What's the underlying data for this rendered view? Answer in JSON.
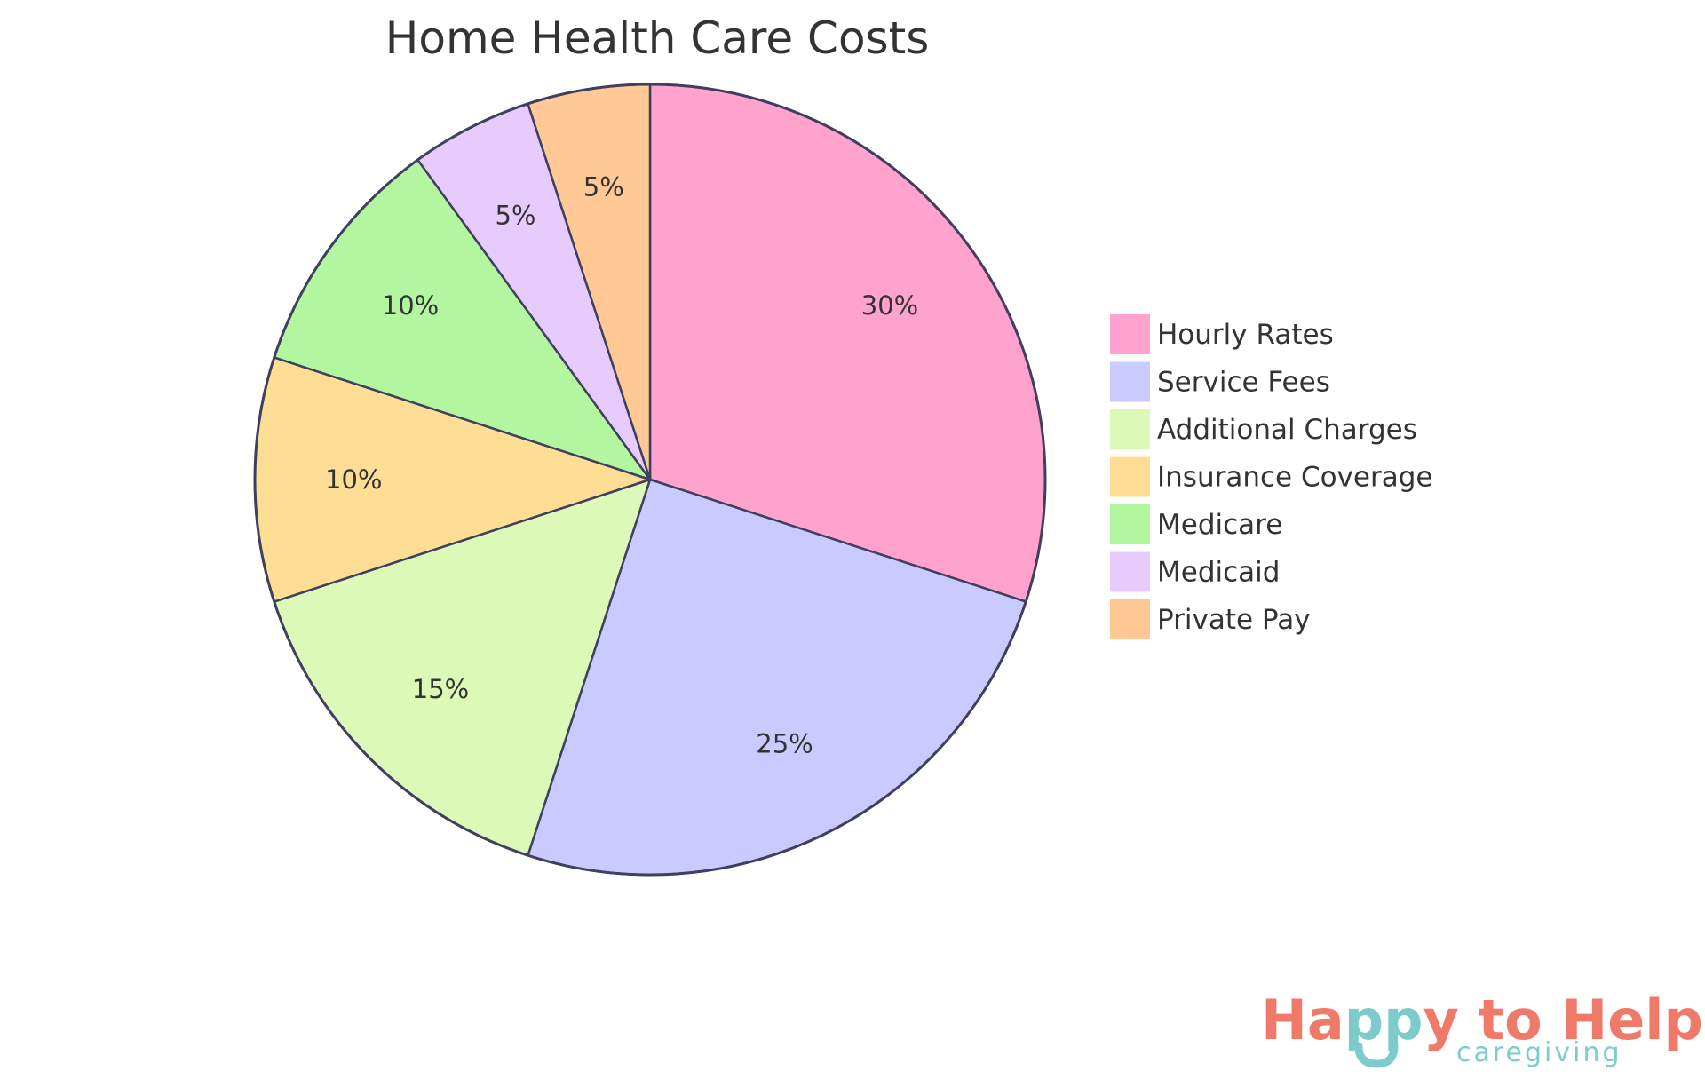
{
  "chart_data": {
    "type": "pie",
    "title": "Home Health Care Costs",
    "categories": [
      "Hourly Rates",
      "Service Fees",
      "Additional Charges",
      "Insurance Coverage",
      "Medicare",
      "Medicaid",
      "Private Pay"
    ],
    "values": [
      30,
      25,
      15,
      10,
      10,
      5,
      5
    ],
    "labels": [
      "30%",
      "25%",
      "15%",
      "10%",
      "10%",
      "5%",
      "5%"
    ],
    "colors": [
      "#FFA3CE",
      "#C9CBFF",
      "#DCF9B8",
      "#FDDE94",
      "#B2F7A0",
      "#E6CBFC",
      "#FFC894"
    ],
    "stroke_color": "#3F3F5F",
    "legend_position": "right",
    "start_angle": "12 o'clock",
    "direction": "clockwise"
  },
  "logo": {
    "part1": "Ha",
    "part2": "pp",
    "part3": "y to Help",
    "sub": "caregiving",
    "coral": "#F07A6A",
    "teal": "#7ECBCB"
  }
}
